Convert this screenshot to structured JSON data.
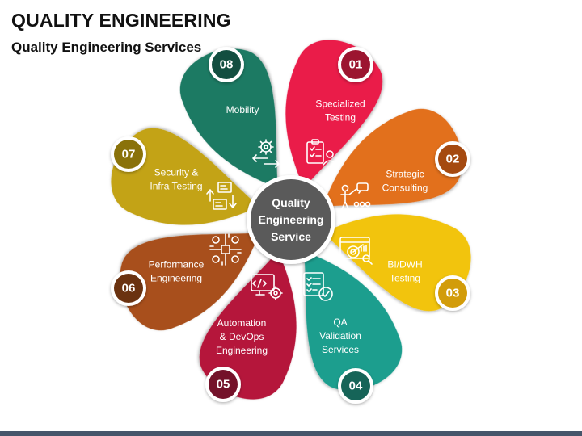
{
  "title": "QUALITY ENGINEERING",
  "subtitle": "Quality Engineering Services",
  "center": {
    "lines": [
      "Quality",
      "Engineering",
      "Service"
    ],
    "color": "#5a5a5a"
  },
  "petals": [
    {
      "number": "01",
      "lines": [
        "Specialized",
        "Testing"
      ],
      "color": "#ea1c4a",
      "circle_color": "#9c1530",
      "icon": "clipboard-checklist-person-icon"
    },
    {
      "number": "02",
      "lines": [
        "Strategic",
        "Consulting"
      ],
      "color": "#e2701f",
      "circle_color": "#a54a10",
      "icon": "presenter-team-icon"
    },
    {
      "number": "03",
      "lines": [
        "BI/DWH",
        "Testing"
      ],
      "color": "#f2c40c",
      "circle_color": "#d29c0a",
      "icon": "analytics-target-icon"
    },
    {
      "number": "04",
      "lines": [
        "QA",
        "Validation",
        "Services"
      ],
      "color": "#1d9e8e",
      "circle_color": "#166458",
      "icon": "checklist-verified-icon"
    },
    {
      "number": "05",
      "lines": [
        "Automation",
        "& DevOps",
        "Engineering"
      ],
      "color": "#b5183a",
      "circle_color": "#74122a",
      "icon": "monitor-gear-icon"
    },
    {
      "number": "06",
      "lines": [
        "Performance",
        "Engineering"
      ],
      "color": "#a8501b",
      "circle_color": "#6a3210",
      "icon": "network-hub-icon"
    },
    {
      "number": "07",
      "lines": [
        "Security &",
        "Infra Testing"
      ],
      "color": "#c3a312",
      "circle_color": "#8a720a",
      "icon": "infra-flow-icon"
    },
    {
      "number": "08",
      "lines": [
        "Mobility"
      ],
      "color": "#1f7a64",
      "circle_color": "#134e40",
      "icon": "gear-arrows-icon"
    }
  ]
}
